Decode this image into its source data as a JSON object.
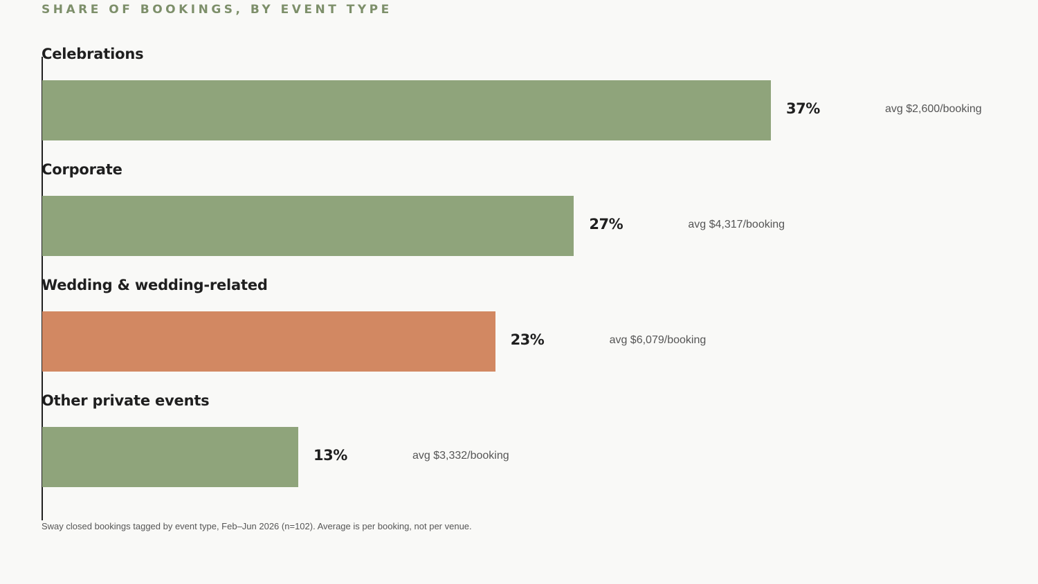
{
  "chart_data": {
    "type": "bar",
    "orientation": "horizontal",
    "title": "SHARE OF BOOKINGS, BY EVENT TYPE",
    "categories": [
      "Celebrations",
      "Corporate",
      "Wedding & wedding-related",
      "Other private events"
    ],
    "values": [
      37,
      27,
      23,
      13
    ],
    "value_labels": [
      "37%",
      "27%",
      "23%",
      "13%"
    ],
    "annotations": [
      "avg $2,600/booking",
      "avg $4,317/booking",
      "avg $6,079/booking",
      "avg $3,332/booking"
    ],
    "colors": [
      "#8fa47b",
      "#8fa47b",
      "#d28862",
      "#8fa47b"
    ],
    "highlighted_category": "Wedding & wedding-related",
    "xlim": [
      0,
      37
    ],
    "grid": false,
    "legend": "none",
    "footnote": "Sway closed bookings tagged by event type, Feb–Jun 2026 (n=102). Average is per booking, not per venue."
  }
}
